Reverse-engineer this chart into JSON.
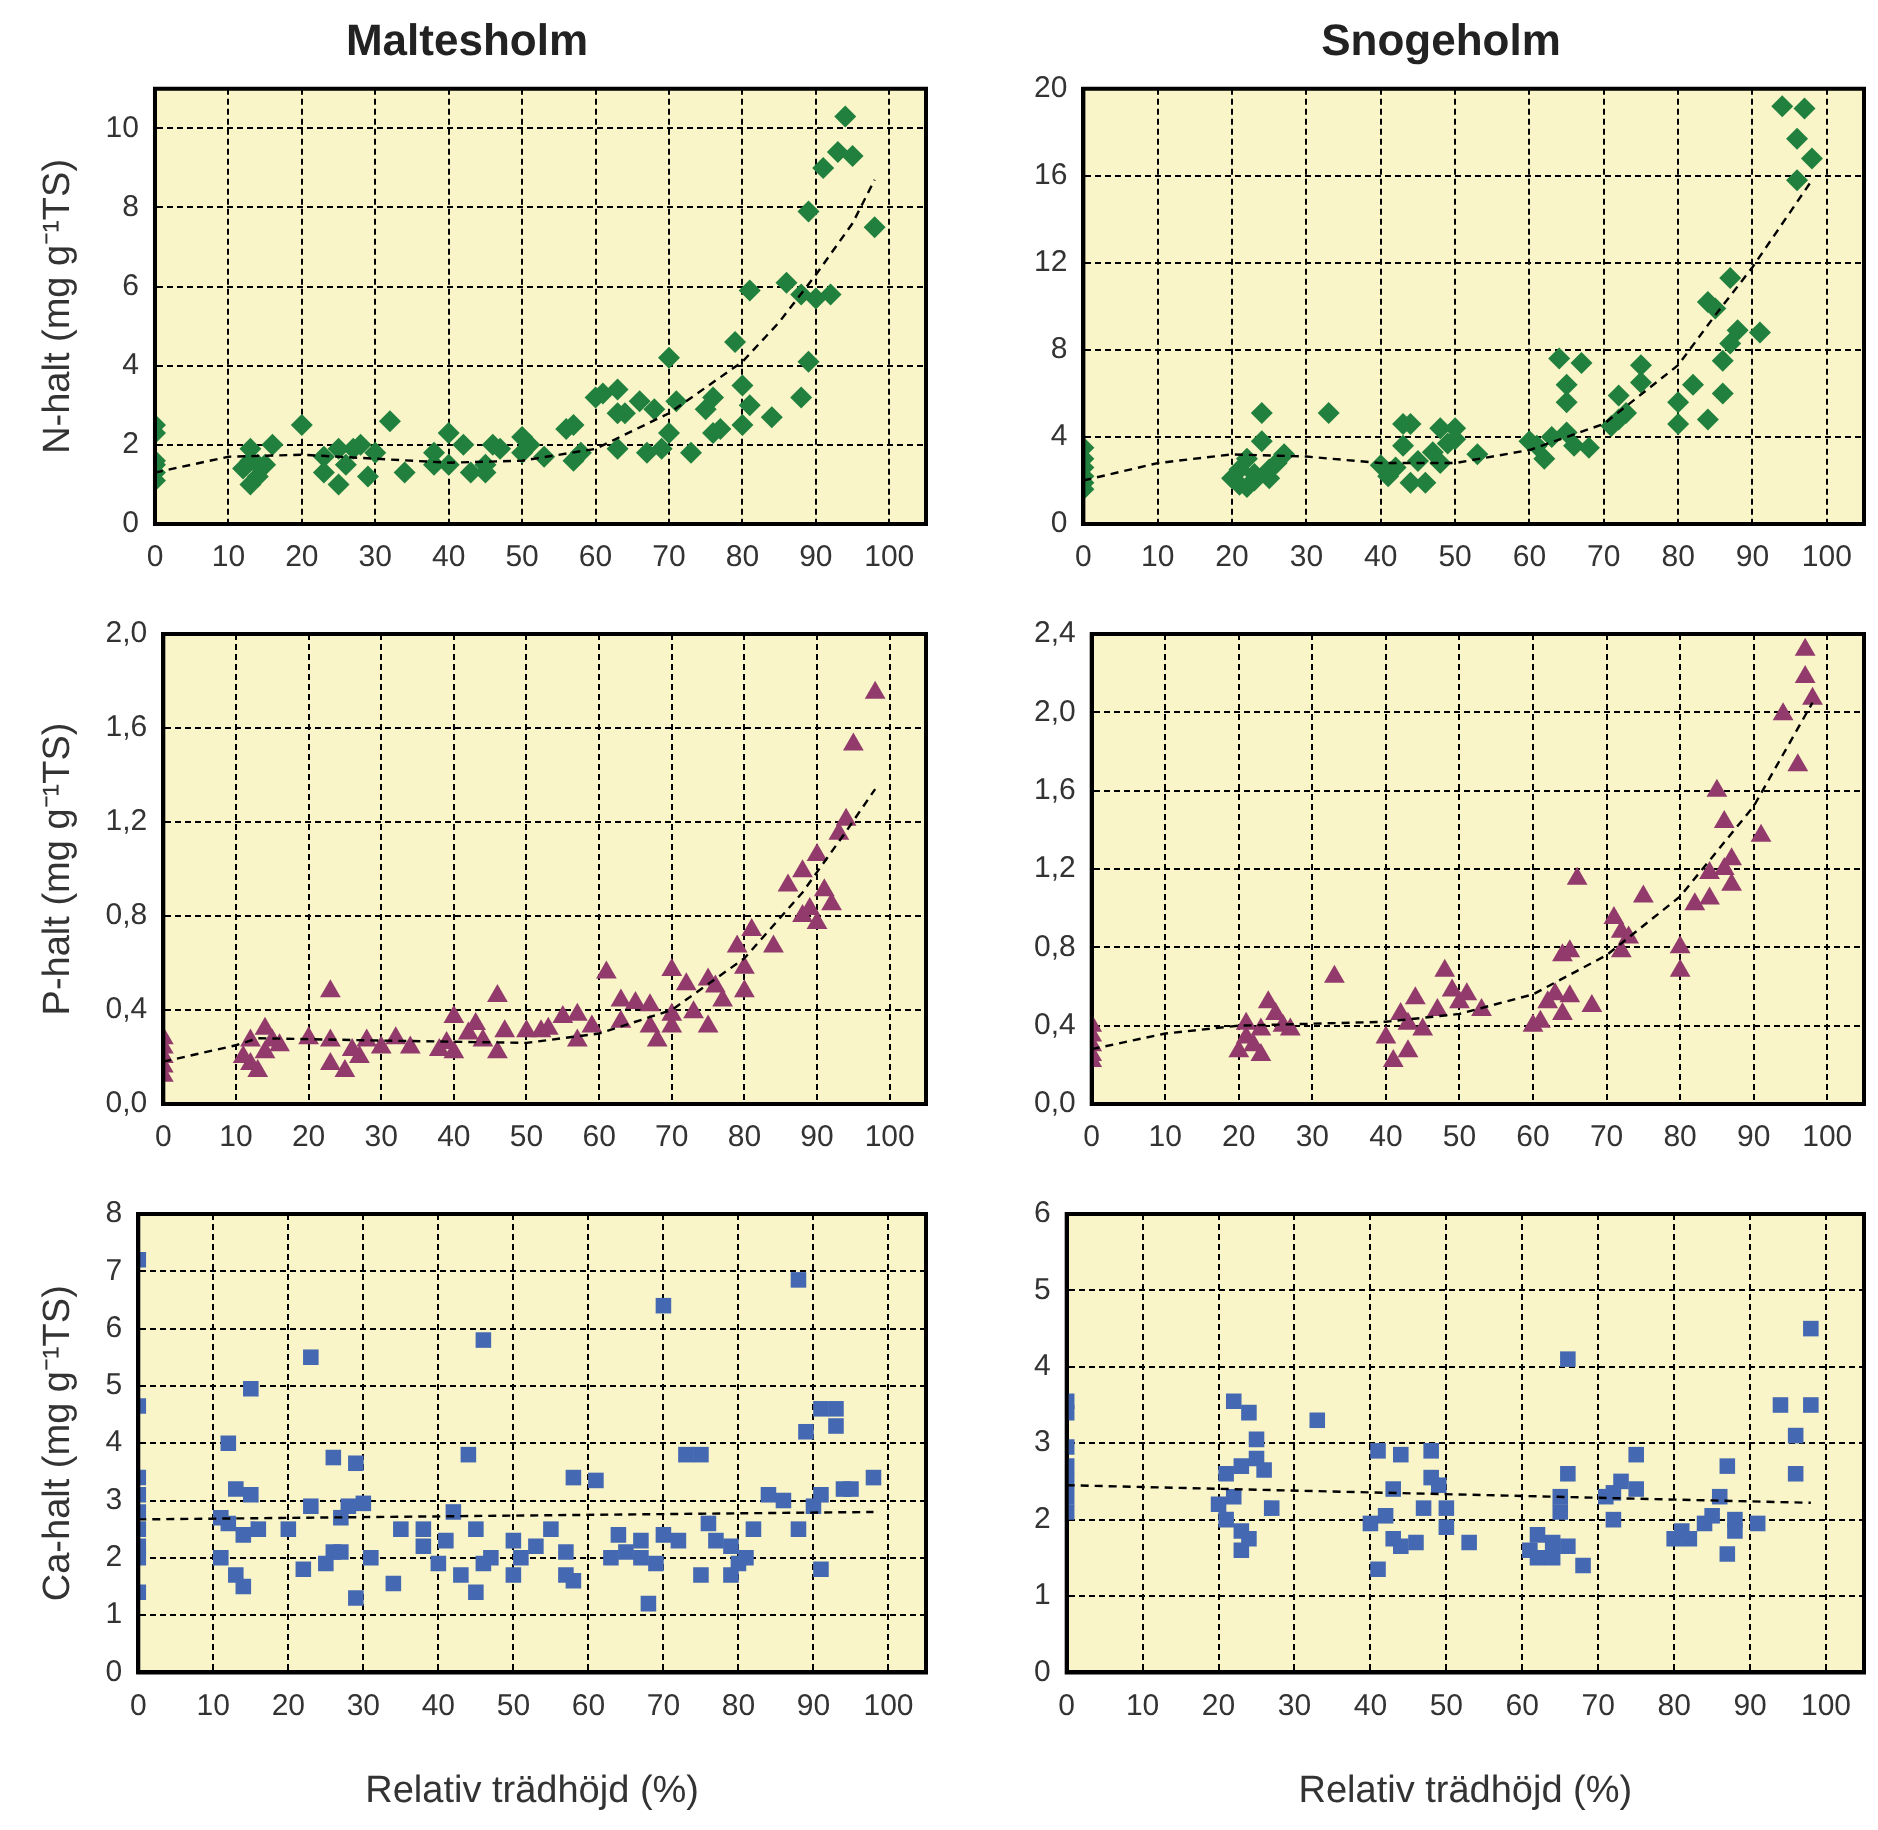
{
  "chart_data": [
    {
      "type": "scatter",
      "title": "Maltesholm",
      "ylabel": "N-halt (mg g⁻¹TS)",
      "marker": "diamond",
      "grid": true,
      "legend": false,
      "xlim": [
        0,
        105
      ],
      "xticks": [
        0,
        10,
        20,
        30,
        40,
        50,
        60,
        70,
        80,
        90,
        100
      ],
      "ylim": [
        0,
        11
      ],
      "yticks": [
        0,
        2,
        4,
        6,
        8,
        10
      ],
      "series": [
        {
          "color": "#22803e",
          "x": [
            0,
            0,
            0,
            0,
            0,
            0,
            12,
            13,
            13,
            14,
            14,
            15,
            16,
            13,
            20,
            23,
            23,
            25,
            25,
            26,
            27,
            28,
            29,
            30,
            32,
            34,
            38,
            38,
            40,
            40,
            42,
            43,
            45,
            46,
            45,
            47,
            50,
            50,
            51,
            53,
            56,
            57,
            57,
            58,
            60,
            61,
            63,
            63,
            64,
            63,
            66,
            67,
            68,
            69,
            70,
            70,
            71,
            73,
            75,
            76,
            76,
            77,
            79,
            80,
            80,
            81,
            81,
            84,
            86,
            88,
            88,
            89,
            89,
            90,
            91,
            92,
            93,
            94,
            95,
            98
          ],
          "values": [
            2.5,
            2.3,
            1.6,
            1.5,
            1.3,
            1.1,
            1.4,
            1.9,
            1.0,
            1.5,
            1.2,
            1.5,
            2.0,
            1.6,
            2.5,
            1.7,
            1.3,
            1.9,
            1.0,
            1.5,
            1.9,
            2.0,
            1.2,
            1.8,
            2.6,
            1.3,
            1.5,
            1.8,
            2.3,
            1.5,
            2.0,
            1.3,
            1.5,
            2.0,
            1.3,
            1.9,
            2.2,
            1.8,
            2.0,
            1.7,
            2.4,
            2.5,
            1.6,
            1.8,
            3.2,
            3.3,
            3.4,
            2.8,
            2.8,
            1.9,
            3.1,
            1.8,
            2.9,
            1.9,
            2.3,
            4.2,
            3.1,
            1.8,
            2.9,
            3.2,
            2.3,
            2.4,
            4.6,
            3.5,
            2.5,
            3.0,
            5.9,
            2.7,
            6.1,
            3.2,
            5.8,
            4.1,
            7.9,
            5.7,
            9.0,
            5.8,
            9.4,
            10.3,
            9.3,
            7.5
          ]
        },
        {
          "type": "line",
          "color": "#000000",
          "line_style": "dashed",
          "marker": "none",
          "x": [
            0,
            10,
            20,
            30,
            40,
            50,
            60,
            70,
            80,
            85,
            90,
            95,
            98
          ],
          "values": [
            1.3,
            1.7,
            1.75,
            1.65,
            1.55,
            1.6,
            1.9,
            2.8,
            4.1,
            5.1,
            6.3,
            7.6,
            8.7
          ]
        }
      ]
    },
    {
      "type": "scatter",
      "title": "Snogeholm",
      "marker": "diamond",
      "grid": true,
      "legend": false,
      "xlim": [
        0,
        105
      ],
      "xticks": [
        0,
        10,
        20,
        30,
        40,
        50,
        60,
        70,
        80,
        90,
        100
      ],
      "ylim": [
        0,
        20
      ],
      "yticks": [
        0,
        4,
        8,
        12,
        16,
        20
      ],
      "series": [
        {
          "color": "#22803e",
          "x": [
            0,
            0,
            0,
            0,
            0,
            0,
            20,
            21,
            21,
            22,
            22,
            23,
            23,
            24,
            24,
            25,
            25,
            26,
            27,
            33,
            40,
            41,
            42,
            43,
            43,
            44,
            44,
            45,
            46,
            47,
            48,
            48,
            49,
            50,
            50,
            53,
            60,
            61,
            62,
            63,
            64,
            65,
            65,
            65,
            66,
            67,
            68,
            71,
            72,
            72,
            73,
            75,
            75,
            80,
            80,
            82,
            84,
            84,
            85,
            86,
            86,
            87,
            87,
            88,
            91,
            94,
            97,
            96,
            96,
            98
          ],
          "values": [
            3.5,
            3.0,
            2.6,
            2.2,
            1.9,
            1.6,
            2.1,
            2.5,
            1.8,
            3.0,
            1.7,
            2.3,
            2.0,
            5.1,
            3.8,
            2.5,
            2.1,
            2.8,
            3.2,
            5.1,
            2.7,
            2.2,
            2.6,
            4.6,
            3.6,
            4.6,
            1.9,
            2.9,
            1.9,
            3.3,
            4.4,
            2.8,
            3.7,
            4.4,
            3.9,
            3.2,
            3.8,
            3.6,
            3.0,
            4.0,
            7.6,
            6.4,
            5.6,
            4.2,
            3.6,
            7.4,
            3.5,
            4.5,
            5.9,
            4.8,
            5.1,
            7.3,
            6.5,
            5.6,
            4.6,
            6.4,
            4.8,
            10.2,
            9.9,
            6.0,
            7.5,
            11.3,
            8.3,
            8.9,
            8.8,
            19.2,
            19.1,
            17.7,
            15.8,
            16.8
          ]
        },
        {
          "type": "line",
          "color": "#000000",
          "line_style": "dashed",
          "marker": "none",
          "x": [
            0,
            10,
            20,
            30,
            40,
            50,
            60,
            70,
            80,
            85,
            90,
            95,
            98
          ],
          "values": [
            2.0,
            2.8,
            3.2,
            3.1,
            2.8,
            2.8,
            3.4,
            4.6,
            7.3,
            9.6,
            11.8,
            14.3,
            15.8
          ]
        }
      ]
    },
    {
      "type": "scatter",
      "ylabel": "P-halt (mg g⁻¹TS)",
      "marker": "triangle",
      "grid": true,
      "legend": false,
      "xlim": [
        0,
        105
      ],
      "xticks": [
        0,
        10,
        20,
        30,
        40,
        50,
        60,
        70,
        80,
        90,
        100
      ],
      "ylim": [
        0,
        2
      ],
      "yticks": [
        {
          "value": 0,
          "label": "0,0"
        },
        {
          "value": 0.4,
          "label": "0,4"
        },
        {
          "value": 0.8,
          "label": "0,8"
        },
        {
          "value": 1.2,
          "label": "1,2"
        },
        {
          "value": 1.6,
          "label": "1,6"
        },
        {
          "value": 2,
          "label": "2,0"
        }
      ],
      "series": [
        {
          "color": "#923a6c",
          "x": [
            0,
            0,
            0,
            0,
            0,
            11,
            12,
            12,
            13,
            14,
            14,
            15,
            16,
            20,
            23,
            23,
            23,
            25,
            26,
            27,
            28,
            30,
            32,
            34,
            38,
            39,
            40,
            40,
            42,
            43,
            44,
            46,
            46,
            47,
            50,
            52,
            53,
            55,
            57,
            57,
            59,
            61,
            63,
            63,
            65,
            67,
            67,
            68,
            70,
            70,
            70,
            72,
            73,
            75,
            75,
            76,
            77,
            79,
            80,
            80,
            81,
            84,
            86,
            88,
            88,
            89,
            90,
            90,
            91,
            92,
            93,
            94,
            95,
            98
          ],
          "values": [
            0.28,
            0.24,
            0.2,
            0.16,
            0.12,
            0.2,
            0.17,
            0.27,
            0.14,
            0.22,
            0.32,
            0.27,
            0.25,
            0.28,
            0.27,
            0.48,
            0.17,
            0.14,
            0.23,
            0.2,
            0.27,
            0.24,
            0.28,
            0.24,
            0.23,
            0.26,
            0.22,
            0.37,
            0.3,
            0.34,
            0.27,
            0.22,
            0.46,
            0.31,
            0.31,
            0.31,
            0.32,
            0.37,
            0.27,
            0.38,
            0.33,
            0.56,
            0.44,
            0.35,
            0.43,
            0.42,
            0.33,
            0.27,
            0.57,
            0.33,
            0.38,
            0.51,
            0.39,
            0.53,
            0.33,
            0.5,
            0.44,
            0.67,
            0.58,
            0.48,
            0.74,
            0.67,
            0.93,
            0.99,
            0.8,
            0.83,
            0.77,
            1.06,
            0.91,
            0.85,
            1.15,
            1.21,
            1.53,
            1.75
          ]
        },
        {
          "type": "line",
          "color": "#000000",
          "line_style": "dashed",
          "marker": "none",
          "x": [
            0,
            10,
            13,
            30,
            50,
            60,
            70,
            80,
            88,
            94,
            98
          ],
          "values": [
            0.18,
            0.25,
            0.28,
            0.27,
            0.26,
            0.3,
            0.4,
            0.62,
            0.9,
            1.16,
            1.34
          ]
        }
      ]
    },
    {
      "type": "scatter",
      "marker": "triangle",
      "grid": true,
      "legend": false,
      "xlim": [
        0,
        105
      ],
      "xticks": [
        0,
        10,
        20,
        30,
        40,
        50,
        60,
        70,
        80,
        90,
        100
      ],
      "ylim": [
        0,
        2.4
      ],
      "yticks": [
        {
          "value": 0,
          "label": "0,0"
        },
        {
          "value": 0.4,
          "label": "0,4"
        },
        {
          "value": 0.8,
          "label": "0,8"
        },
        {
          "value": 1.2,
          "label": "1,2"
        },
        {
          "value": 1.6,
          "label": "1,6"
        },
        {
          "value": 2,
          "label": "2,0"
        },
        {
          "value": 2.4,
          "label": "2,4"
        }
      ],
      "series": [
        {
          "color": "#923a6c",
          "x": [
            0,
            0,
            0,
            0,
            0,
            20,
            21,
            21,
            22,
            23,
            23,
            24,
            25,
            26,
            27,
            33,
            40,
            41,
            42,
            43,
            43,
            44,
            45,
            47,
            48,
            49,
            50,
            51,
            53,
            60,
            61,
            62,
            63,
            64,
            64,
            65,
            65,
            66,
            68,
            71,
            72,
            72,
            73,
            75,
            80,
            80,
            82,
            84,
            84,
            85,
            86,
            86,
            87,
            87,
            91,
            94,
            96,
            97,
            97,
            98
          ],
          "values": [
            0.4,
            0.35,
            0.3,
            0.25,
            0.22,
            0.27,
            0.34,
            0.41,
            0.3,
            0.25,
            0.38,
            0.52,
            0.46,
            0.4,
            0.38,
            0.65,
            0.34,
            0.22,
            0.46,
            0.41,
            0.27,
            0.54,
            0.38,
            0.48,
            0.68,
            0.58,
            0.52,
            0.56,
            0.48,
            0.4,
            0.42,
            0.52,
            0.56,
            0.76,
            0.46,
            0.78,
            0.55,
            1.15,
            0.5,
            0.95,
            0.88,
            0.78,
            0.85,
            1.06,
            0.8,
            0.68,
            1.02,
            1.05,
            1.18,
            1.6,
            1.44,
            1.2,
            1.25,
            1.12,
            1.37,
            1.99,
            1.73,
            2.18,
            2.32,
            2.07
          ]
        },
        {
          "type": "line",
          "color": "#000000",
          "line_style": "dashed",
          "marker": "none",
          "x": [
            0,
            10,
            20,
            30,
            40,
            50,
            60,
            70,
            80,
            90,
            98
          ],
          "values": [
            0.28,
            0.36,
            0.4,
            0.41,
            0.42,
            0.46,
            0.56,
            0.76,
            1.06,
            1.52,
            2.05
          ]
        }
      ]
    },
    {
      "type": "scatter",
      "xlabel": "Relativ trädhöjd (%)",
      "ylabel": "Ca-halt (mg g⁻¹TS)",
      "marker": "square",
      "grid": true,
      "legend": false,
      "xlim": [
        0,
        105
      ],
      "xticks": [
        0,
        10,
        20,
        30,
        40,
        50,
        60,
        70,
        80,
        90,
        100
      ],
      "ylim": [
        0,
        8
      ],
      "yticks": [
        0,
        1,
        2,
        3,
        4,
        5,
        6,
        7,
        8
      ],
      "series": [
        {
          "color": "#4468b2",
          "x": [
            0,
            0,
            0,
            0,
            0,
            0,
            0,
            0,
            0,
            11,
            11,
            12,
            12,
            13,
            13,
            14,
            14,
            15,
            15,
            16,
            20,
            22,
            23,
            23,
            25,
            26,
            26,
            27,
            27,
            28,
            29,
            29,
            30,
            31,
            34,
            35,
            38,
            38,
            40,
            41,
            42,
            43,
            44,
            45,
            45,
            46,
            46,
            47,
            50,
            50,
            51,
            53,
            55,
            57,
            57,
            58,
            58,
            61,
            63,
            64,
            65,
            67,
            67,
            68,
            69,
            70,
            70,
            72,
            73,
            75,
            75,
            76,
            77,
            79,
            79,
            80,
            81,
            82,
            84,
            86,
            88,
            88,
            89,
            90,
            91,
            91,
            91,
            93,
            93,
            94,
            95,
            98
          ],
          "values": [
            7.2,
            4.65,
            3.4,
            3.1,
            2.8,
            2.5,
            2.2,
            2.0,
            1.4,
            2.7,
            2.0,
            4.0,
            2.6,
            1.7,
            3.2,
            2.4,
            1.5,
            4.95,
            3.1,
            2.5,
            2.5,
            1.8,
            2.9,
            5.5,
            1.9,
            3.75,
            2.1,
            2.7,
            2.1,
            2.9,
            1.3,
            3.65,
            2.95,
            2.0,
            1.55,
            2.5,
            2.5,
            2.2,
            1.9,
            2.3,
            2.8,
            1.7,
            3.8,
            2.5,
            1.4,
            1.9,
            5.8,
            2.0,
            2.3,
            1.7,
            2.0,
            2.2,
            2.5,
            2.1,
            1.7,
            1.6,
            3.4,
            3.35,
            2.0,
            2.4,
            2.1,
            2.3,
            2.0,
            1.2,
            1.9,
            2.4,
            6.4,
            2.3,
            3.8,
            3.8,
            1.7,
            2.6,
            2.3,
            2.2,
            1.7,
            1.9,
            2.0,
            2.5,
            3.1,
            3.0,
            2.5,
            6.85,
            4.2,
            2.9,
            4.6,
            1.8,
            3.1,
            4.3,
            4.6,
            3.2,
            3.2,
            3.4
          ]
        },
        {
          "type": "line",
          "color": "#000000",
          "line_style": "dashed",
          "marker": "none",
          "x": [
            0,
            98
          ],
          "values": [
            2.67,
            2.8
          ]
        }
      ]
    },
    {
      "type": "scatter",
      "xlabel": "Relativ trädhöjd (%)",
      "marker": "square",
      "grid": true,
      "legend": false,
      "xlim": [
        0,
        105
      ],
      "xticks": [
        0,
        10,
        20,
        30,
        40,
        50,
        60,
        70,
        80,
        90,
        100
      ],
      "ylim": [
        0,
        6
      ],
      "yticks": [
        0,
        1,
        2,
        3,
        4,
        5,
        6
      ],
      "series": [
        {
          "color": "#4468b2",
          "x": [
            0,
            0,
            0,
            0,
            0,
            0,
            0,
            20,
            21,
            21,
            22,
            22,
            23,
            23,
            23,
            24,
            24,
            25,
            25,
            26,
            27,
            33,
            40,
            41,
            41,
            42,
            43,
            43,
            44,
            44,
            46,
            47,
            48,
            48,
            49,
            50,
            50,
            53,
            61,
            62,
            62,
            64,
            64,
            65,
            65,
            66,
            66,
            66,
            68,
            71,
            72,
            72,
            73,
            75,
            75,
            80,
            81,
            82,
            84,
            85,
            86,
            87,
            87,
            88,
            88,
            91,
            94,
            96,
            96,
            98,
            98
          ],
          "values": [
            3.55,
            3.4,
            2.95,
            2.7,
            2.5,
            2.3,
            2.1,
            2.2,
            2.0,
            2.6,
            3.55,
            2.3,
            2.7,
            1.85,
            1.6,
            3.4,
            1.75,
            2.8,
            3.05,
            2.65,
            2.15,
            3.3,
            1.95,
            2.9,
            1.35,
            2.05,
            2.4,
            1.75,
            2.85,
            1.65,
            1.7,
            2.15,
            2.9,
            2.55,
            2.45,
            2.15,
            1.9,
            1.7,
            1.6,
            1.5,
            1.8,
            1.7,
            1.5,
            2.1,
            2.3,
            2.6,
            1.65,
            4.1,
            1.4,
            2.3,
            2.0,
            2.35,
            2.5,
            2.85,
            2.4,
            1.75,
            1.85,
            1.75,
            1.95,
            2.05,
            2.3,
            2.7,
            1.55,
            2.0,
            1.85,
            1.95,
            3.5,
            3.1,
            2.6,
            4.5,
            3.5
          ]
        },
        {
          "type": "line",
          "color": "#000000",
          "line_style": "dashed",
          "marker": "none",
          "x": [
            0,
            98
          ],
          "values": [
            2.45,
            2.22
          ]
        }
      ]
    }
  ]
}
